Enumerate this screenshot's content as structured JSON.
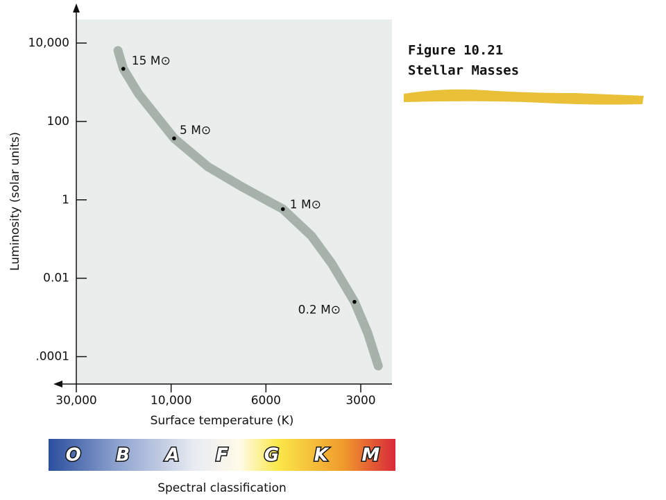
{
  "figure_label": "Figure 10.21",
  "figure_title": "Stellar Masses",
  "chart_data": {
    "type": "scatter",
    "xlabel": "Surface temperature (K)",
    "ylabel": "Luminosity (solar units)",
    "xscale": "log",
    "yscale": "log",
    "xlim": [
      30000,
      2400
    ],
    "xticks": [
      {
        "value": 30000,
        "label": "30,000"
      },
      {
        "value": 10000,
        "label": "10,000"
      },
      6000,
      3000
    ],
    "ylim": [
      2e-05,
      40000
    ],
    "yticks": [
      {
        "value": 10000,
        "label": "10,000"
      },
      100,
      1,
      0.01,
      {
        "value": 0.0001,
        "label": ".0001"
      }
    ],
    "curve": {
      "color": "#9aa79f",
      "x": [
        18500,
        17400,
        14600,
        9840,
        8200,
        6800,
        5300,
        4300,
        3700,
        3140,
        2850,
        2640
      ],
      "y": [
        6400,
        2200,
        510,
        37,
        7,
        2.1,
        0.58,
        0.12,
        0.023,
        0.0025,
        0.0004,
        5.8e-05
      ]
    },
    "points": {
      "color": "#000000",
      "x": [
        17400,
        9840,
        5300,
        3140
      ],
      "y": [
        2200,
        37,
        0.58,
        0.0025
      ],
      "labels": [
        "15 M⊙",
        "5 M⊙",
        "1 M⊙",
        "0.2 M⊙"
      ]
    },
    "spectral_label": "Spectral classification",
    "spectral_classes": [
      "O",
      "B",
      "A",
      "F",
      "G",
      "K",
      "M"
    ]
  }
}
